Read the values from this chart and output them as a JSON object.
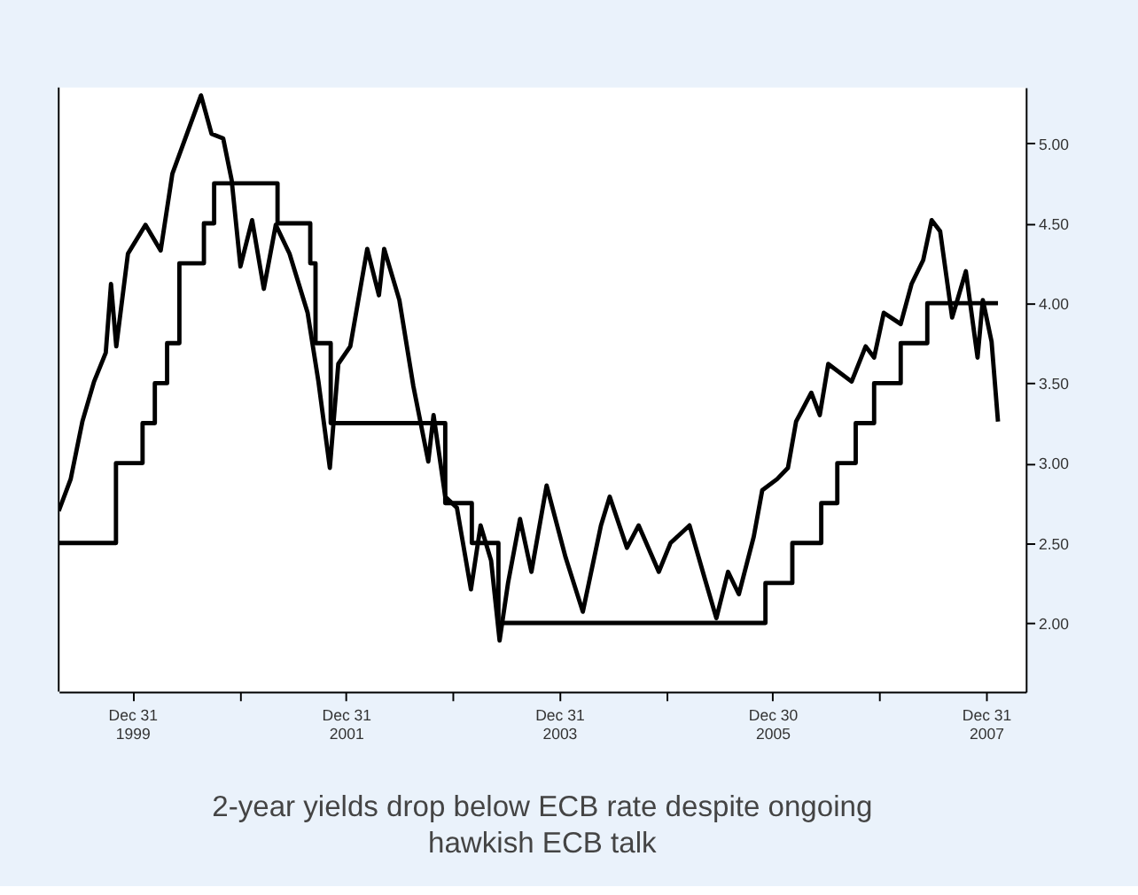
{
  "chart_data": {
    "type": "line",
    "annotations": [
      "2-year yields drop below ECB rate despite ongoing hawkish ECB talk"
    ],
    "xlim": [
      "1999-04-23",
      "2008-05-15"
    ],
    "xticks": [
      {
        "value": "1999-12-31",
        "label": "Dec 31\n1999"
      },
      {
        "value": "2000-12-31",
        "label": null
      },
      {
        "value": "2001-12-31",
        "label": "Dec 31\n2001"
      },
      {
        "value": "2002-12-31",
        "label": null
      },
      {
        "value": "2003-12-31",
        "label": "Dec 31\n2003"
      },
      {
        "value": "2004-12-31",
        "label": null
      },
      {
        "value": "2005-12-30",
        "label": "Dec 30\n2005"
      },
      {
        "value": "2006-12-31",
        "label": null
      },
      {
        "value": "2007-12-31",
        "label": "Dec 31\n2007"
      }
    ],
    "ylim": [
      1.57,
      5.35
    ],
    "yticks": [
      {
        "value": 2,
        "label": "2.00"
      },
      {
        "value": 2.5,
        "label": "2.50"
      },
      {
        "value": 3,
        "label": "3.00"
      },
      {
        "value": 3.5,
        "label": "3.50"
      },
      {
        "value": 4,
        "label": "4.00"
      },
      {
        "value": 4.5,
        "label": "4.50"
      },
      {
        "value": 5,
        "label": "5.00"
      }
    ],
    "grid": false,
    "legend": false,
    "marker": "none",
    "line_style": "solid",
    "series": [
      {
        "type": "step",
        "color": "#000000",
        "x": [
          "1999-04-23",
          "1999-11-05",
          "2000-02-04",
          "2000-03-17",
          "2000-04-28",
          "2000-06-09",
          "2000-09-01",
          "2000-10-06",
          "2001-05-11",
          "2001-08-31",
          "2001-09-18",
          "2001-11-09",
          "2002-12-06",
          "2003-03-07",
          "2003-06-06",
          "2005-12-06",
          "2006-03-08",
          "2006-06-15",
          "2006-08-09",
          "2006-10-11",
          "2006-12-13",
          "2007-03-14",
          "2007-06-13",
          "2008-02-10"
        ],
        "values": [
          2.5,
          3.0,
          3.25,
          3.5,
          3.75,
          4.25,
          4.5,
          4.75,
          4.5,
          4.25,
          3.75,
          3.25,
          2.75,
          2.5,
          2.0,
          2.25,
          2.5,
          2.75,
          3.0,
          3.25,
          3.5,
          3.75,
          4.0,
          4.0
        ]
      },
      {
        "type": "line",
        "color": "#000000",
        "x": [
          "1999-04-23",
          "1999-06-03",
          "1999-07-13",
          "1999-08-22",
          "1999-10-01",
          "1999-10-19",
          "1999-11-06",
          "1999-12-16",
          "2000-02-14",
          "2000-04-06",
          "2000-05-16",
          "2000-06-21",
          "2000-08-22",
          "2000-09-27",
          "2000-11-06",
          "2000-12-05",
          "2001-01-04",
          "2001-02-13",
          "2001-03-25",
          "2001-05-05",
          "2001-06-21",
          "2001-08-22",
          "2001-09-28",
          "2001-11-06",
          "2001-12-05",
          "2002-01-15",
          "2002-03-14",
          "2002-04-23",
          "2002-05-11",
          "2002-07-02",
          "2002-08-19",
          "2002-10-09",
          "2002-10-27",
          "2002-12-06",
          "2003-01-15",
          "2003-03-04",
          "2003-04-06",
          "2003-05-12",
          "2003-06-10",
          "2003-07-09",
          "2003-08-19",
          "2003-09-27",
          "2003-11-18",
          "2004-01-22",
          "2004-03-21",
          "2004-05-22",
          "2004-06-21",
          "2004-08-19",
          "2004-09-28",
          "2004-12-06",
          "2005-01-15",
          "2005-03-21",
          "2005-05-12",
          "2005-06-21",
          "2005-07-31",
          "2005-09-06",
          "2005-10-27",
          "2005-11-25",
          "2006-01-15",
          "2006-02-21",
          "2006-03-21",
          "2006-05-12",
          "2006-06-10",
          "2006-07-09",
          "2006-09-27",
          "2006-11-14",
          "2006-12-13",
          "2007-01-15",
          "2007-03-14",
          "2007-04-20",
          "2007-05-30",
          "2007-06-28",
          "2007-07-27",
          "2007-09-06",
          "2007-09-24",
          "2007-10-23",
          "2007-12-02",
          "2007-12-20",
          "2008-01-19",
          "2008-02-10"
        ],
        "values": [
          2.7,
          2.9,
          3.26,
          3.51,
          3.69,
          4.12,
          3.73,
          4.31,
          4.49,
          4.33,
          4.81,
          4.99,
          5.3,
          5.06,
          5.03,
          4.77,
          4.23,
          4.52,
          4.09,
          4.49,
          4.31,
          3.94,
          3.51,
          2.97,
          3.62,
          3.73,
          4.34,
          4.05,
          4.34,
          4.02,
          3.48,
          3.01,
          3.3,
          2.79,
          2.72,
          2.21,
          2.61,
          2.39,
          1.89,
          2.25,
          2.65,
          2.32,
          2.86,
          2.41,
          2.07,
          2.61,
          2.79,
          2.47,
          2.61,
          2.32,
          2.5,
          2.61,
          2.28,
          2.03,
          2.32,
          2.18,
          2.54,
          2.83,
          2.9,
          2.97,
          3.26,
          3.44,
          3.3,
          3.62,
          3.51,
          3.73,
          3.66,
          3.94,
          3.87,
          4.12,
          4.27,
          4.52,
          4.45,
          3.91,
          4.02,
          4.2,
          3.66,
          4.02,
          3.76,
          3.26
        ]
      }
    ]
  }
}
